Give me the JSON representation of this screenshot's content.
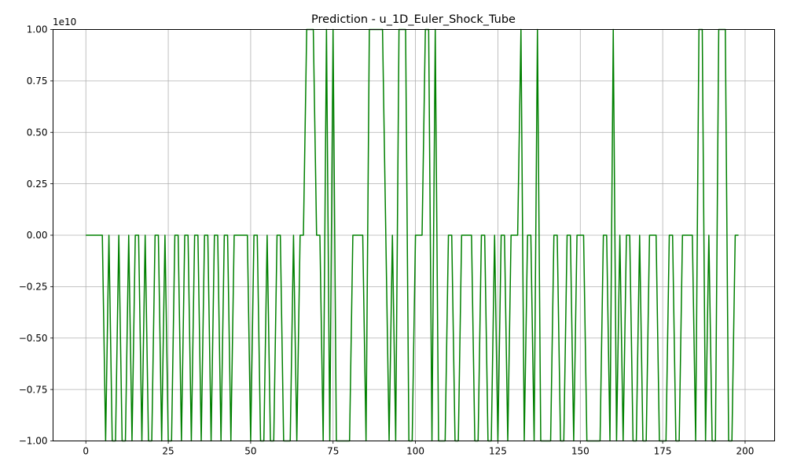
{
  "chart_data": {
    "type": "line",
    "title": "Prediction - u_1D_Euler_Shock_Tube",
    "xlabel": "",
    "ylabel": "",
    "y_offset_label": "1e10",
    "xlim": [
      -9.95,
      208.95
    ],
    "ylim": [
      -1.0,
      1.0
    ],
    "grid": true,
    "x_ticks": [
      0,
      25,
      50,
      75,
      100,
      125,
      150,
      175,
      200
    ],
    "x_tick_labels": [
      "0",
      "25",
      "50",
      "75",
      "100",
      "125",
      "150",
      "175",
      "200"
    ],
    "y_ticks": [
      -1.0,
      -0.75,
      -0.5,
      -0.25,
      0.0,
      0.25,
      0.5,
      0.75,
      1.0
    ],
    "y_tick_labels": [
      "−1.00",
      "−0.75",
      "−0.50",
      "−0.25",
      "0.00",
      "0.25",
      "0.50",
      "0.75",
      "1.00"
    ],
    "series": [
      {
        "color": "#008000",
        "x_start": 0,
        "x_step": 1,
        "values": [
          0,
          0,
          0,
          0,
          0,
          0,
          -1,
          0,
          -1,
          -1,
          0,
          -1,
          -1,
          0,
          -1,
          0,
          0,
          -1,
          0,
          -1,
          -1,
          0,
          0,
          -1,
          0,
          -1,
          -1,
          0,
          0,
          -1,
          0,
          0,
          -1,
          0,
          0,
          -1,
          0,
          0,
          -1,
          0,
          0,
          -1,
          0,
          0,
          -1,
          0,
          0,
          0,
          0,
          0,
          -1,
          0,
          0,
          -1,
          -1,
          0,
          -1,
          -1,
          0,
          0,
          -1,
          -1,
          -1,
          0,
          -1,
          0,
          0,
          1,
          1,
          1,
          0,
          0,
          -1,
          1,
          -1,
          1,
          -1,
          -1,
          -1,
          -1,
          -1,
          0,
          0,
          0,
          0,
          -1,
          1,
          1,
          1,
          1,
          1,
          0,
          -1,
          0,
          -1,
          1,
          1,
          1,
          -1,
          -1,
          0,
          0,
          0,
          1,
          1,
          -1,
          1,
          -1,
          -1,
          -1,
          0,
          0,
          -1,
          -1,
          0,
          0,
          0,
          0,
          -1,
          -1,
          0,
          0,
          -1,
          -1,
          0,
          -1,
          0,
          0,
          -1,
          0,
          0,
          0,
          1,
          -1,
          0,
          0,
          -1,
          1,
          -1,
          -1,
          -1,
          -1,
          0,
          0,
          -1,
          -1,
          0,
          0,
          -1,
          0,
          0,
          0,
          -1,
          -1,
          -1,
          -1,
          -1,
          0,
          0,
          -1,
          1,
          -1,
          0,
          -1,
          0,
          0,
          -1,
          -1,
          0,
          -1,
          -1,
          0,
          0,
          0,
          -1,
          -1,
          -1,
          0,
          0,
          -1,
          -1,
          0,
          0,
          0,
          0,
          -1,
          1,
          1,
          -1,
          0,
          -1,
          -1,
          1,
          1,
          1,
          -1,
          -1,
          0,
          0
        ]
      }
    ]
  }
}
